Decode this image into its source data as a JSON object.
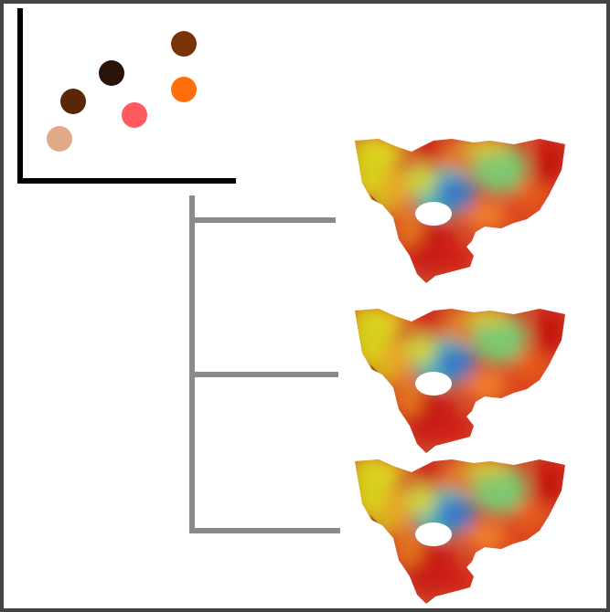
{
  "colors": {
    "frame_border": "#444444",
    "axis": "#000000",
    "connector": "#8a8a8a",
    "heatmap_red": "#cc1a12",
    "heatmap_orange": "#ee6a20",
    "heatmap_yellow": "#d8cf1a",
    "heatmap_cyan": "#3fc0b8",
    "heatmap_blue": "#3a78c6",
    "heatmap_green": "#7ec870"
  },
  "scatter_points": [
    {
      "color": "#7a3308"
    },
    {
      "color": "#2a1408"
    },
    {
      "color": "#5a2608"
    },
    {
      "color": "#ff5a5f"
    },
    {
      "color": "#ff6e0a"
    },
    {
      "color": "#e0aa88"
    }
  ],
  "branch_count": 3,
  "icons": {
    "scatter_plot": "scatter-plot-icon",
    "tree_connector": "tree-connector",
    "surface_mesh": "heatmap-surface-icon"
  }
}
